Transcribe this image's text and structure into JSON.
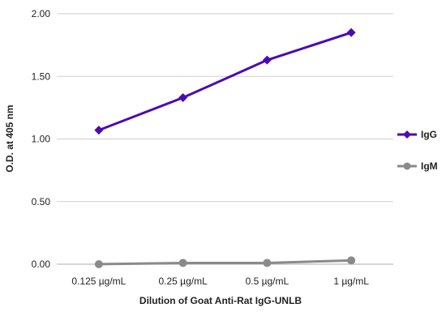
{
  "chart_data": {
    "type": "line",
    "title": "",
    "xlabel": "Dilution of Goat Anti-Rat IgG-UNLB",
    "ylabel": "O.D. at 405 nm",
    "categories": [
      "0.125 µg/mL",
      "0.25 µg/mL",
      "0.5 µg/mL",
      "1 µg/mL"
    ],
    "ylim": [
      0,
      2
    ],
    "yticks": [
      "0.00",
      "0.50",
      "1.00",
      "1.50",
      "2.00"
    ],
    "grid": true,
    "legend_position": "right",
    "series": [
      {
        "name": "IgG",
        "values": [
          1.07,
          1.33,
          1.63,
          1.85
        ],
        "color": "#4b0bb3",
        "marker": "diamond"
      },
      {
        "name": "IgM",
        "values": [
          0.0,
          0.01,
          0.01,
          0.03
        ],
        "color": "#8a8a8a",
        "marker": "circle"
      }
    ]
  }
}
